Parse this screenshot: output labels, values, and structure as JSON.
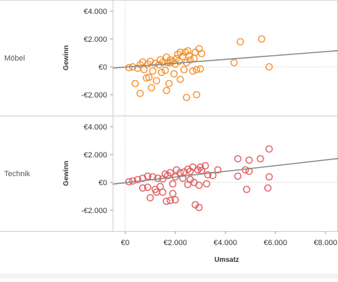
{
  "chart_data": {
    "type": "scatter",
    "xlabel": "Umsatz",
    "ylabel": "Gewinn",
    "xlim": [
      -500,
      8500
    ],
    "ylim": [
      -3000,
      4300
    ],
    "x_ticks": [
      {
        "value": 0,
        "label": "€0"
      },
      {
        "value": 2000,
        "label": "€2.000"
      },
      {
        "value": 4000,
        "label": "€4.000"
      },
      {
        "value": 6000,
        "label": "€6.000"
      },
      {
        "value": 8000,
        "label": "€8.000"
      }
    ],
    "y_ticks": [
      {
        "value": 4000,
        "label": "€4.000"
      },
      {
        "value": 2000,
        "label": "€2.000"
      },
      {
        "value": 0,
        "label": "€0"
      },
      {
        "value": -2000,
        "label": "-€2.000"
      }
    ],
    "grid": false,
    "marker": "open-circle",
    "panels": [
      {
        "name": "Möbel",
        "color": "#f28e2b",
        "trend": {
          "intercept": -20,
          "slope": 0.139
        },
        "points": [
          [
            4600,
            1800
          ],
          [
            5450,
            2000
          ],
          [
            5750,
            0
          ],
          [
            4350,
            300
          ],
          [
            3050,
            950
          ],
          [
            2950,
            1300
          ],
          [
            2800,
            1050
          ],
          [
            2750,
            600
          ],
          [
            3000,
            -150
          ],
          [
            2850,
            -200
          ],
          [
            2700,
            -300
          ],
          [
            2500,
            1150
          ],
          [
            2400,
            1050
          ],
          [
            2550,
            800
          ],
          [
            2300,
            750
          ],
          [
            2200,
            1050
          ],
          [
            2100,
            900
          ],
          [
            2600,
            500
          ],
          [
            2450,
            300
          ],
          [
            2150,
            400
          ],
          [
            2350,
            -200
          ],
          [
            2000,
            200
          ],
          [
            1900,
            400
          ],
          [
            1800,
            500
          ],
          [
            1700,
            300
          ],
          [
            2200,
            -900
          ],
          [
            2850,
            -2000
          ],
          [
            2450,
            -2200
          ],
          [
            1750,
            -1200
          ],
          [
            1650,
            -1700
          ],
          [
            1250,
            -1000
          ],
          [
            1050,
            -1500
          ],
          [
            950,
            -750
          ],
          [
            850,
            -800
          ],
          [
            600,
            -1900
          ],
          [
            400,
            -1200
          ],
          [
            1350,
            150
          ],
          [
            1600,
            -250
          ],
          [
            1450,
            -400
          ],
          [
            1100,
            -300
          ],
          [
            750,
            -200
          ],
          [
            500,
            -100
          ],
          [
            300,
            0
          ],
          [
            150,
            -60
          ],
          [
            600,
            150
          ],
          [
            900,
            200
          ],
          [
            1200,
            250
          ],
          [
            1500,
            320
          ],
          [
            1800,
            300
          ],
          [
            1400,
            500
          ],
          [
            1000,
            400
          ],
          [
            700,
            350
          ],
          [
            2050,
            600
          ],
          [
            1650,
            700
          ],
          [
            1950,
            -500
          ]
        ]
      },
      {
        "name": "Technik",
        "color": "#e15759",
        "trend": {
          "intercept": -20,
          "slope": 0.204
        },
        "points": [
          [
            5750,
            2400
          ],
          [
            5400,
            1700
          ],
          [
            4950,
            1600
          ],
          [
            4500,
            1700
          ],
          [
            4800,
            900
          ],
          [
            4950,
            800
          ],
          [
            4500,
            450
          ],
          [
            5750,
            400
          ],
          [
            5700,
            -400
          ],
          [
            4850,
            -500
          ],
          [
            3700,
            900
          ],
          [
            3500,
            500
          ],
          [
            3050,
            850
          ],
          [
            3300,
            550
          ],
          [
            3200,
            1200
          ],
          [
            3000,
            1100
          ],
          [
            2900,
            900
          ],
          [
            2700,
            1100
          ],
          [
            2600,
            800
          ],
          [
            2500,
            950
          ],
          [
            2350,
            750
          ],
          [
            2200,
            700
          ],
          [
            2050,
            900
          ],
          [
            3250,
            -100
          ],
          [
            2950,
            -200
          ],
          [
            2750,
            0
          ],
          [
            2500,
            -150
          ],
          [
            2800,
            -1600
          ],
          [
            2950,
            -1800
          ],
          [
            2000,
            -1250
          ],
          [
            1800,
            -1300
          ],
          [
            1650,
            -1350
          ],
          [
            1900,
            -800
          ],
          [
            1500,
            -700
          ],
          [
            1250,
            -700
          ],
          [
            1400,
            -300
          ],
          [
            1200,
            -500
          ],
          [
            900,
            -350
          ],
          [
            700,
            -400
          ],
          [
            1000,
            -1100
          ],
          [
            1500,
            250
          ],
          [
            1300,
            300
          ],
          [
            1100,
            400
          ],
          [
            900,
            450
          ],
          [
            700,
            300
          ],
          [
            500,
            200
          ],
          [
            300,
            100
          ],
          [
            150,
            50
          ],
          [
            1700,
            500
          ],
          [
            2000,
            400
          ],
          [
            1800,
            700
          ],
          [
            1600,
            600
          ],
          [
            2300,
            300
          ],
          [
            2600,
            200
          ],
          [
            1900,
            -100
          ]
        ]
      }
    ]
  }
}
